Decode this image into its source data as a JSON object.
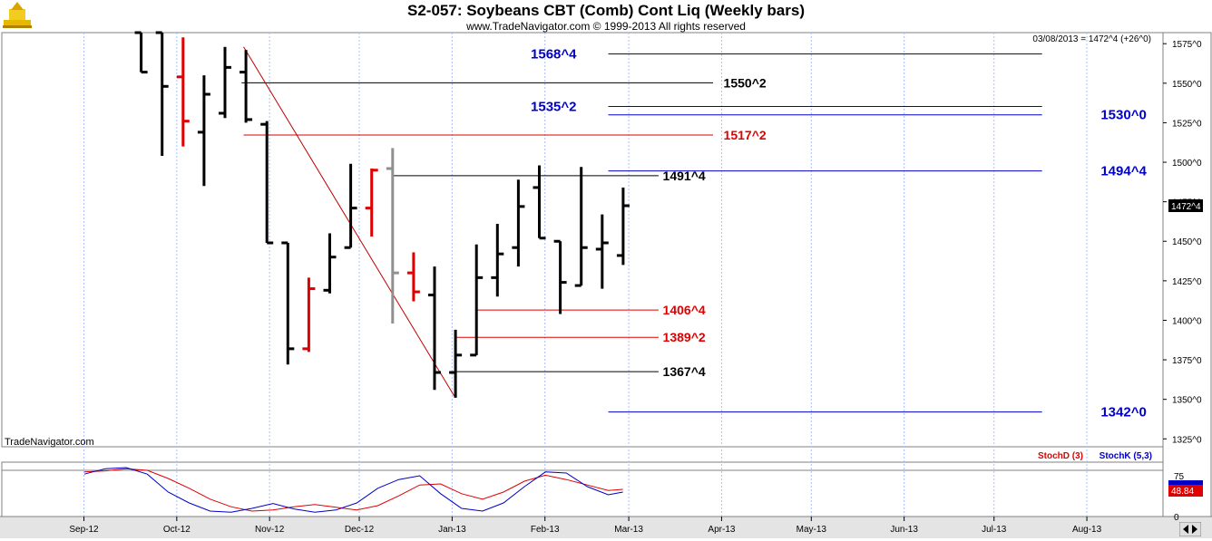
{
  "header": {
    "title": "S2-057:  Soybeans CBT (Comb) Cont Liq  (Weekly bars)",
    "copyright": "www.TradeNavigator.com © 1999-2013 All rights reserved",
    "status": "03/08/2013 = 1472^4 (+26^0)",
    "watermark": "TradeNavigator.com",
    "last_price": "1472^4"
  },
  "colors": {
    "up": "#000000",
    "down": "#e00000",
    "grey": "#909090",
    "blue": "#0000c8",
    "red": "#e00000",
    "black": "#000000"
  },
  "chart_data": [
    {
      "type": "ohlc",
      "title": "S2-057:  Soybeans CBT (Comb) Cont Liq  (Weekly bars)",
      "y_axis": {
        "range": [
          1320,
          1582
        ],
        "ticks": [
          "1325^0",
          "1350^0",
          "1375^0",
          "1400^0",
          "1425^0",
          "1450^0",
          "1475^0",
          "1500^0",
          "1525^0",
          "1550^0",
          "1575^0"
        ],
        "tick_values": [
          1325,
          1350,
          1375,
          1400,
          1425,
          1450,
          1475,
          1500,
          1525,
          1550,
          1575
        ]
      },
      "x_axis": {
        "ticks": [
          "Sep-12",
          "Oct-12",
          "Nov-12",
          "Dec-12",
          "Jan-13",
          "Feb-13",
          "Mar-13",
          "Apr-13",
          "May-13",
          "Jun-13",
          "Jul-13",
          "Aug-13"
        ],
        "tick_weeks": [
          0,
          4.43,
          8.86,
          13.14,
          17.57,
          22,
          26,
          30.43,
          34.71,
          39.14,
          43.43,
          47.86
        ]
      },
      "bars": [
        {
          "w": 2.71,
          "o": 1582,
          "h": 1582,
          "l": 1557,
          "c": 1557,
          "color": "up"
        },
        {
          "w": 3.71,
          "o": 1582,
          "h": 1582,
          "l": 1504,
          "c": 1548,
          "color": "up"
        },
        {
          "w": 4.71,
          "o": 1554,
          "h": 1579,
          "l": 1510,
          "c": 1526,
          "color": "down"
        },
        {
          "w": 5.71,
          "o": 1519,
          "h": 1555,
          "l": 1485,
          "c": 1543,
          "color": "up"
        },
        {
          "w": 6.71,
          "o": 1531,
          "h": 1573,
          "l": 1528,
          "c": 1560,
          "color": "up"
        },
        {
          "w": 7.71,
          "o": 1557,
          "h": 1571,
          "l": 1525,
          "c": 1527,
          "color": "up"
        },
        {
          "w": 8.71,
          "o": 1524,
          "h": 1526,
          "l": 1449,
          "c": 1449,
          "color": "up"
        },
        {
          "w": 9.71,
          "o": 1449,
          "h": 1449,
          "l": 1372,
          "c": 1382,
          "color": "up"
        },
        {
          "w": 10.71,
          "o": 1382,
          "h": 1427,
          "l": 1380,
          "c": 1420,
          "color": "down"
        },
        {
          "w": 11.71,
          "o": 1419,
          "h": 1455,
          "l": 1417,
          "c": 1440,
          "color": "up"
        },
        {
          "w": 12.71,
          "o": 1446,
          "h": 1499,
          "l": 1446,
          "c": 1471,
          "color": "up"
        },
        {
          "w": 13.71,
          "o": 1471,
          "h": 1496,
          "l": 1453,
          "c": 1495,
          "color": "down"
        },
        {
          "w": 14.71,
          "o": 1496,
          "h": 1509,
          "l": 1398,
          "c": 1430,
          "color": "grey"
        },
        {
          "w": 15.71,
          "o": 1430,
          "h": 1443,
          "l": 1412,
          "c": 1418,
          "color": "down"
        },
        {
          "w": 16.71,
          "o": 1416,
          "h": 1434,
          "l": 1356,
          "c": 1367,
          "color": "up"
        },
        {
          "w": 17.71,
          "o": 1367,
          "h": 1394,
          "l": 1351,
          "c": 1378,
          "color": "up"
        },
        {
          "w": 18.71,
          "o": 1378,
          "h": 1448,
          "l": 1378,
          "c": 1427,
          "color": "up"
        },
        {
          "w": 19.71,
          "o": 1427,
          "h": 1461,
          "l": 1415,
          "c": 1442,
          "color": "up"
        },
        {
          "w": 20.71,
          "o": 1446,
          "h": 1489,
          "l": 1434,
          "c": 1472,
          "color": "up"
        },
        {
          "w": 21.71,
          "o": 1484,
          "h": 1498,
          "l": 1452,
          "c": 1452,
          "color": "up"
        },
        {
          "w": 22.71,
          "o": 1450,
          "h": 1450,
          "l": 1404,
          "c": 1424,
          "color": "up"
        },
        {
          "w": 23.71,
          "o": 1422,
          "h": 1497,
          "l": 1422,
          "c": 1446,
          "color": "up"
        },
        {
          "w": 24.71,
          "o": 1445,
          "h": 1467,
          "l": 1420,
          "c": 1449,
          "color": "up"
        },
        {
          "w": 25.71,
          "o": 1441,
          "h": 1484,
          "l": 1435,
          "c": 1472.5,
          "color": "up"
        }
      ],
      "trendline": {
        "from": {
          "w": 7.6,
          "v": 1573
        },
        "to": {
          "w": 17.7,
          "v": 1351
        }
      },
      "levels": [
        {
          "label": "1568^4",
          "value": 1568.5,
          "color": "blue",
          "w0": 25.0,
          "w1": 45.7,
          "label_w": 21.3,
          "label_side": "left",
          "bold": true
        },
        {
          "label": "1550^2",
          "value": 1550.25,
          "color": "black",
          "w0": 7.5,
          "w1": 30.0,
          "label_w": 30.5,
          "label_side": "right",
          "bold": false
        },
        {
          "label": "1535^2",
          "value": 1535.25,
          "color": "blue",
          "w0": 25.0,
          "w1": 45.7,
          "label_w": 21.3,
          "label_side": "left",
          "bold": true
        },
        {
          "label": "1530^0",
          "value": 1530,
          "color": "blue",
          "w0": 25.0,
          "w1": 45.7,
          "label_w": 48.5,
          "label_side": "right",
          "bold": true
        },
        {
          "label": "1517^2",
          "value": 1517.25,
          "color": "red",
          "w0": 7.6,
          "w1": 30.0,
          "label_w": 30.5,
          "label_side": "right",
          "bold": false
        },
        {
          "label": "1494^4",
          "value": 1494.5,
          "color": "blue",
          "w0": 25.0,
          "w1": 45.7,
          "label_w": 48.5,
          "label_side": "right",
          "bold": true
        },
        {
          "label": "1491^4",
          "value": 1491.5,
          "color": "black",
          "w0": 14.7,
          "w1": 27.4,
          "label_w": 27.6,
          "label_side": "right",
          "bold": false
        },
        {
          "label": "1406^4",
          "value": 1406.5,
          "color": "red",
          "w0": 18.7,
          "w1": 27.4,
          "label_w": 27.6,
          "label_side": "right",
          "bold": false
        },
        {
          "label": "1389^2",
          "value": 1389.25,
          "color": "red",
          "w0": 17.7,
          "w1": 27.4,
          "label_w": 27.6,
          "label_side": "right",
          "bold": false
        },
        {
          "label": "1367^4",
          "value": 1367.5,
          "color": "black",
          "w0": 17.7,
          "w1": 27.4,
          "label_w": 27.6,
          "label_side": "right",
          "bold": false
        },
        {
          "label": "1342^0",
          "value": 1342,
          "color": "blue",
          "w0": 25.0,
          "w1": 45.7,
          "label_w": 48.5,
          "label_side": "right",
          "bold": true
        }
      ]
    },
    {
      "type": "line",
      "title": "Stochastic",
      "y_axis": {
        "range": [
          0,
          100
        ],
        "ticks": [
          "0",
          "75"
        ],
        "tick_values": [
          0,
          75
        ]
      },
      "ref_line": 85,
      "series": [
        {
          "name": "StochD (3)",
          "color": "#e00000",
          "x": [
            0,
            1,
            2,
            3,
            4,
            5,
            6,
            7,
            8,
            9,
            10,
            11,
            12,
            13,
            14,
            15,
            16,
            17,
            18,
            19,
            20,
            21,
            22,
            23,
            24,
            25,
            25.7
          ],
          "values": [
            82,
            84,
            88,
            85,
            70,
            52,
            32,
            18,
            10,
            12,
            18,
            22,
            17,
            12,
            20,
            38,
            58,
            60,
            42,
            32,
            45,
            65,
            76,
            68,
            58,
            48,
            50
          ]
        },
        {
          "name": "StochK (5,3)",
          "color": "#0000c8",
          "x": [
            0,
            1,
            2,
            3,
            4,
            5,
            6,
            7,
            8,
            9,
            10,
            11,
            12,
            13,
            14,
            15,
            16,
            17,
            18,
            19,
            20,
            21,
            22,
            23,
            24,
            25,
            25.7
          ],
          "values": [
            78,
            88,
            90,
            78,
            45,
            25,
            10,
            8,
            15,
            24,
            14,
            8,
            12,
            25,
            52,
            68,
            75,
            42,
            15,
            10,
            25,
            55,
            82,
            80,
            55,
            40,
            45
          ]
        }
      ],
      "last_value": "48.84"
    }
  ]
}
